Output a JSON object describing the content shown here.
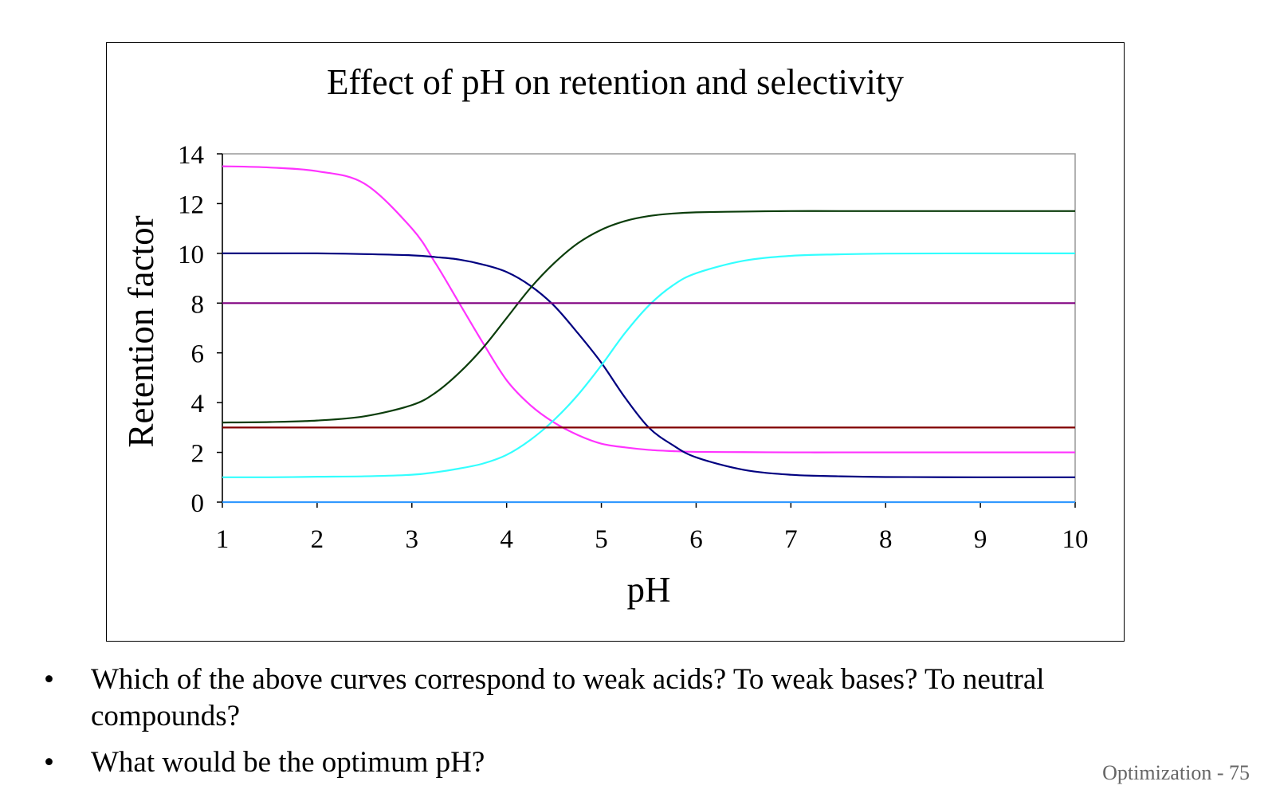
{
  "chart_data": {
    "type": "line",
    "title": "Effect of pH on retention and selectivity",
    "xlabel": "pH",
    "ylabel": "Retention factor",
    "xlim": [
      1,
      10
    ],
    "ylim": [
      0,
      14
    ],
    "xticks": [
      1,
      2,
      3,
      4,
      5,
      6,
      7,
      8,
      9,
      10
    ],
    "yticks": [
      0,
      2,
      4,
      6,
      8,
      10,
      12,
      14
    ],
    "grid": false,
    "legend": "none",
    "x": [
      1,
      1.5,
      2,
      2.5,
      3,
      3.25,
      3.5,
      3.75,
      4,
      4.25,
      4.5,
      4.75,
      5,
      5.25,
      5.5,
      5.75,
      6,
      6.5,
      7,
      7.5,
      8,
      9,
      10
    ],
    "series": [
      {
        "color": "#ff33ff",
        "values": [
          13.5,
          13.45,
          13.3,
          12.8,
          11.0,
          9.6,
          8.0,
          6.4,
          4.9,
          3.9,
          3.2,
          2.7,
          2.35,
          2.2,
          2.1,
          2.05,
          2.02,
          2.01,
          2.0,
          2.0,
          2.0,
          2.0,
          2.0
        ]
      },
      {
        "color": "#000080",
        "values": [
          10.0,
          10.0,
          10.0,
          9.97,
          9.92,
          9.85,
          9.75,
          9.55,
          9.25,
          8.7,
          7.9,
          6.8,
          5.6,
          4.2,
          3.0,
          2.3,
          1.8,
          1.3,
          1.1,
          1.04,
          1.01,
          1.0,
          1.0
        ]
      },
      {
        "color": "#0b3d0b",
        "values": [
          3.2,
          3.22,
          3.28,
          3.45,
          3.9,
          4.4,
          5.2,
          6.2,
          7.4,
          8.6,
          9.6,
          10.4,
          10.95,
          11.3,
          11.5,
          11.6,
          11.65,
          11.68,
          11.7,
          11.7,
          11.7,
          11.7,
          11.7
        ]
      },
      {
        "color": "#33ffff",
        "values": [
          1.0,
          1.0,
          1.02,
          1.04,
          1.1,
          1.2,
          1.35,
          1.55,
          1.9,
          2.5,
          3.3,
          4.3,
          5.5,
          6.8,
          7.9,
          8.7,
          9.2,
          9.7,
          9.9,
          9.96,
          9.99,
          10.0,
          10.0
        ]
      },
      {
        "color": "#800080",
        "values": [
          8,
          8,
          8,
          8,
          8,
          8,
          8,
          8,
          8,
          8,
          8,
          8,
          8,
          8,
          8,
          8,
          8,
          8,
          8,
          8,
          8,
          8,
          8
        ]
      },
      {
        "color": "#800000",
        "values": [
          3,
          3,
          3,
          3,
          3,
          3,
          3,
          3,
          3,
          3,
          3,
          3,
          3,
          3,
          3,
          3,
          3,
          3,
          3,
          3,
          3,
          3,
          3
        ]
      },
      {
        "color": "#3399ff",
        "values": [
          0,
          0,
          0,
          0,
          0,
          0,
          0,
          0,
          0,
          0,
          0,
          0,
          0,
          0,
          0,
          0,
          0,
          0,
          0,
          0,
          0,
          0,
          0
        ]
      }
    ]
  },
  "bullets": [
    {
      "symbol": "•",
      "text": "Which of the above curves correspond to weak acids?  To weak bases?  To neutral compounds?"
    },
    {
      "symbol": "•",
      "text": "What would be the optimum pH?"
    }
  ],
  "footer": "Optimization - 75"
}
